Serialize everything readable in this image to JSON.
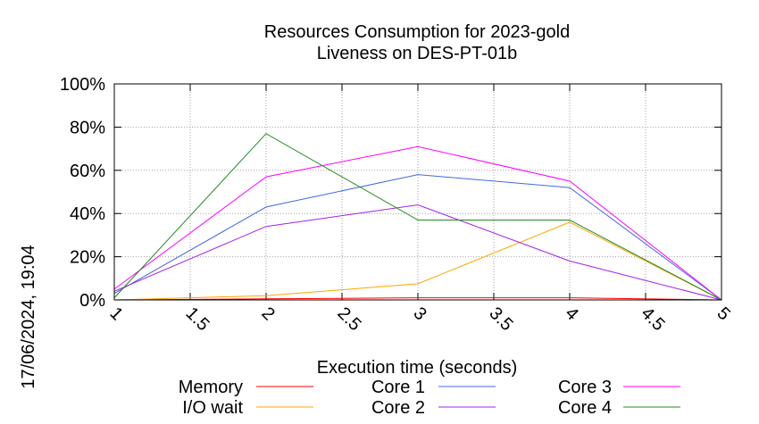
{
  "chart_data": {
    "type": "line",
    "title": "Resources Consumption for 2023-gold",
    "subtitle": "Liveness on DES-PT-01b",
    "xlabel": "Execution time (seconds)",
    "ylabel": "",
    "timestamp": "17/06/2024, 19:04",
    "xlim": [
      1,
      5
    ],
    "ylim": [
      0,
      100
    ],
    "x_ticks": [
      "1",
      "1.5",
      "2",
      "2.5",
      "3",
      "3.5",
      "4",
      "4.5",
      "5"
    ],
    "y_ticks": [
      "0%",
      "20%",
      "40%",
      "60%",
      "80%",
      "100%"
    ],
    "grid": true,
    "legend_position": "bottom",
    "x": [
      1,
      2,
      3,
      4,
      5
    ],
    "series": [
      {
        "name": "Memory",
        "color": "#ff0000",
        "values": [
          0,
          0.5,
          1,
          1,
          0
        ]
      },
      {
        "name": "I/O wait",
        "color": "#ffa500",
        "values": [
          0,
          2,
          7.5,
          36,
          0
        ]
      },
      {
        "name": "Core 1",
        "color": "#4169e1",
        "values": [
          3,
          43,
          58,
          52,
          0
        ]
      },
      {
        "name": "Core 2",
        "color": "#a020f0",
        "values": [
          4,
          34,
          44,
          18,
          0
        ]
      },
      {
        "name": "Core 3",
        "color": "#ff00ff",
        "values": [
          5,
          57,
          71,
          55,
          0
        ]
      },
      {
        "name": "Core 4",
        "color": "#228b22",
        "values": [
          1,
          77,
          37,
          37,
          0
        ]
      }
    ]
  }
}
